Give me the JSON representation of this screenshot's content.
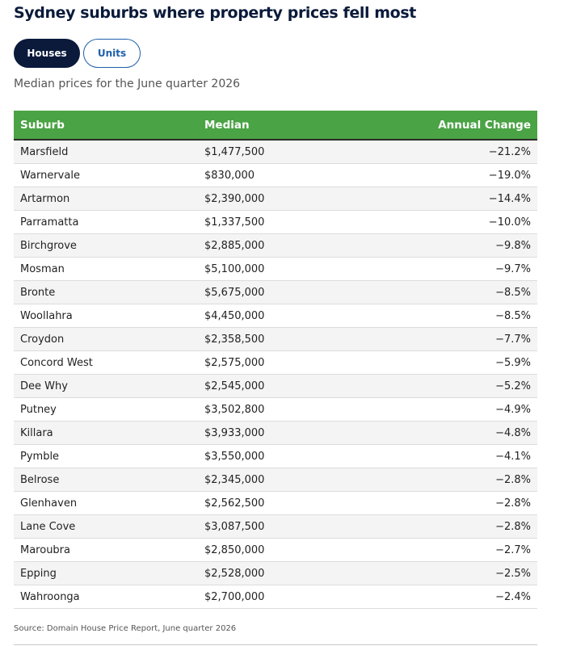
{
  "title": "Sydney suburbs where property prices fell most",
  "toggles": {
    "houses": "Houses",
    "units": "Units"
  },
  "subtitle": "Median prices for the June quarter 2026",
  "source": "Source: Domain House Price Report, June quarter 2026",
  "colors": {
    "header_bg": "#4aa344",
    "active_toggle": "#0b1a3b",
    "link_blue": "#1e5faa"
  },
  "chart_data": {
    "type": "table",
    "columns": [
      "Suburb",
      "Median",
      "Annual Change"
    ],
    "rows": [
      [
        "Marsfield",
        "$1,477,500",
        "−21.2%"
      ],
      [
        "Warnervale",
        "$830,000",
        "−19.0%"
      ],
      [
        "Artarmon",
        "$2,390,000",
        "−14.4%"
      ],
      [
        "Parramatta",
        "$1,337,500",
        "−10.0%"
      ],
      [
        "Birchgrove",
        "$2,885,000",
        "−9.8%"
      ],
      [
        "Mosman",
        "$5,100,000",
        "−9.7%"
      ],
      [
        "Bronte",
        "$5,675,000",
        "−8.5%"
      ],
      [
        "Woollahra",
        "$4,450,000",
        "−8.5%"
      ],
      [
        "Croydon",
        "$2,358,500",
        "−7.7%"
      ],
      [
        "Concord West",
        "$2,575,000",
        "−5.9%"
      ],
      [
        "Dee Why",
        "$2,545,000",
        "−5.2%"
      ],
      [
        "Putney",
        "$3,502,800",
        "−4.9%"
      ],
      [
        "Killara",
        "$3,933,000",
        "−4.8%"
      ],
      [
        "Pymble",
        "$3,550,000",
        "−4.1%"
      ],
      [
        "Belrose",
        "$2,345,000",
        "−2.8%"
      ],
      [
        "Glenhaven",
        "$2,562,500",
        "−2.8%"
      ],
      [
        "Lane Cove",
        "$3,087,500",
        "−2.8%"
      ],
      [
        "Maroubra",
        "$2,850,000",
        "−2.7%"
      ],
      [
        "Epping",
        "$2,528,000",
        "−2.5%"
      ],
      [
        "Wahroonga",
        "$2,700,000",
        "−2.4%"
      ]
    ]
  }
}
